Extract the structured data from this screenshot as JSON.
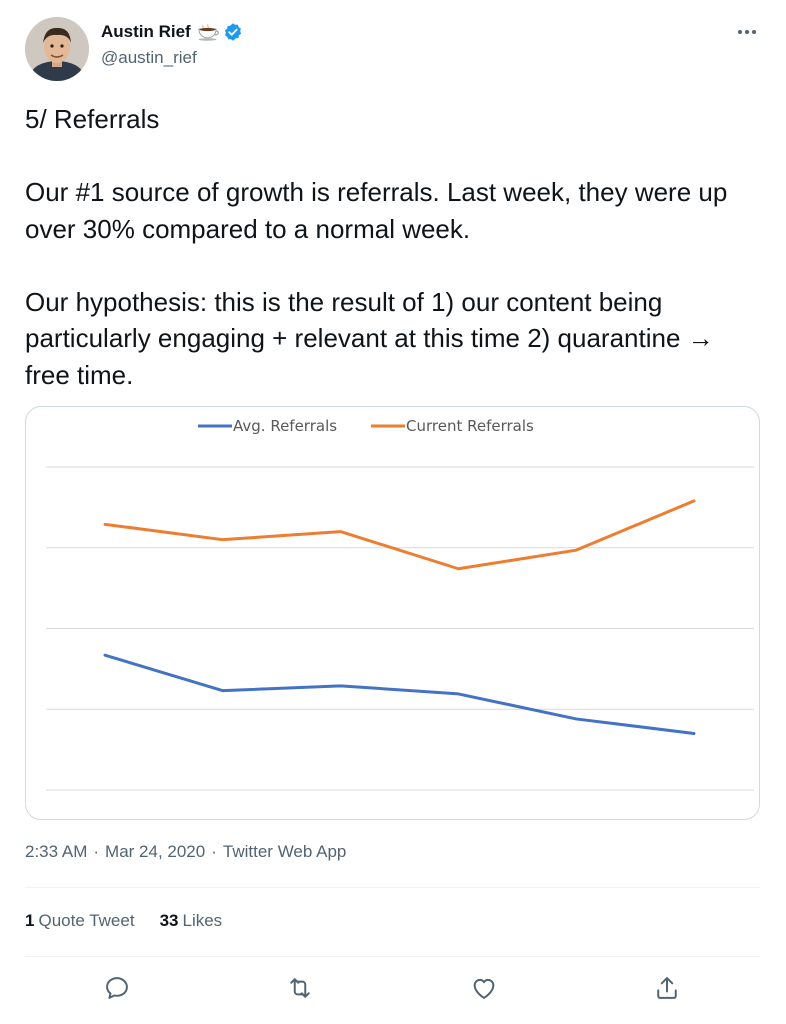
{
  "author": {
    "display_name": "Austin Rief",
    "handle": "@austin_rief"
  },
  "tweet": {
    "text": "5/ Referrals\n\nOur #1 source of growth is referrals. Last week, they were up over 30% compared to a normal week.\n\nOur hypothesis: this is the result of 1) our content being particularly engaging + relevant at this time 2) quarantine → free time."
  },
  "meta": {
    "time": "2:33 AM",
    "date": "Mar 24, 2020",
    "source": "Twitter Web App",
    "separator": "·"
  },
  "stats": {
    "quote_count": "1",
    "quote_label": "Quote Tweet",
    "likes_count": "33",
    "likes_label": "Likes"
  },
  "actions": [
    "reply-icon",
    "retweet-icon",
    "like-icon",
    "share-icon"
  ],
  "chart_data": {
    "type": "line",
    "title": "",
    "xlabel": "",
    "ylabel": "",
    "grid": true,
    "legend_position": "top-center",
    "x": [
      1,
      2,
      3,
      4,
      5,
      6
    ],
    "ylim": [
      0,
      4
    ],
    "series": [
      {
        "name": "Avg. Referrals",
        "color": "#4472c4",
        "values": [
          1.67,
          1.23,
          1.29,
          1.19,
          0.88,
          0.7
        ]
      },
      {
        "name": "Current Referrals",
        "color": "#ed7d31",
        "values": [
          3.29,
          3.1,
          3.2,
          2.74,
          2.97,
          3.58
        ]
      }
    ]
  }
}
